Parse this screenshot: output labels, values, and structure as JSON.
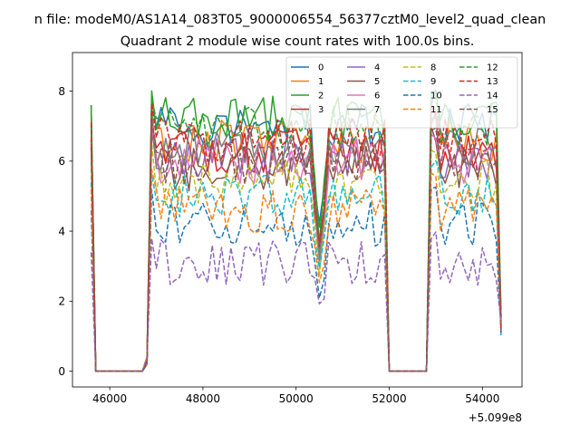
{
  "suptitle": "n file: modeM0/AS1A14_083T05_9000006554_56377cztM0_level2_quad_clean",
  "chart_data": {
    "type": "line",
    "title": "Quadrant 2 module wise count rates with 100.0s bins.",
    "xlabel": "",
    "ylabel": "",
    "x_offset_label": "+5.099e8",
    "xlim": [
      45200,
      54850
    ],
    "ylim": [
      -0.45,
      9.1
    ],
    "x_ticks": [
      46000,
      48000,
      50000,
      52000,
      54000
    ],
    "x_tick_labels": [
      "46000",
      "48000",
      "50000",
      "52000",
      "54000"
    ],
    "y_ticks": [
      0,
      2,
      4,
      6,
      8
    ],
    "y_tick_labels": [
      "0",
      "2",
      "4",
      "6",
      "8"
    ],
    "grid": false,
    "legend": {
      "placement": "top-right",
      "ncol": 4
    },
    "x_segments": [
      {
        "start": 45600,
        "end": 46700,
        "step": 100,
        "profile": "drop"
      },
      {
        "start": 46800,
        "end": 50300,
        "step": 100,
        "profile": "on"
      },
      {
        "start": 50400,
        "end": 50600,
        "step": 100,
        "profile": "dip"
      },
      {
        "start": 50700,
        "end": 51900,
        "step": 100,
        "profile": "on"
      },
      {
        "start": 52000,
        "end": 52800,
        "step": 100,
        "profile": "zero"
      },
      {
        "start": 52900,
        "end": 54400,
        "step": 100,
        "profile": "on"
      }
    ],
    "series": [
      {
        "name": "0",
        "color": "#1f77b4",
        "dash": "solid",
        "level": 7.0,
        "start": 7.6
      },
      {
        "name": "1",
        "color": "#ff7f0e",
        "dash": "solid",
        "level": 6.6,
        "start": 7.3
      },
      {
        "name": "2",
        "color": "#2ca02c",
        "dash": "solid",
        "level": 7.2,
        "start": 7.6
      },
      {
        "name": "3",
        "color": "#d62728",
        "dash": "solid",
        "level": 6.3,
        "start": 6.6
      },
      {
        "name": "4",
        "color": "#9467bd",
        "dash": "solid",
        "level": 6.1,
        "start": 6.6
      },
      {
        "name": "5",
        "color": "#8c564b",
        "dash": "solid",
        "level": 5.8,
        "start": 6.4
      },
      {
        "name": "6",
        "color": "#e377c2",
        "dash": "solid",
        "level": 6.0,
        "start": 6.5
      },
      {
        "name": "7",
        "color": "#7f7f7f",
        "dash": "solid",
        "level": 6.4,
        "start": 7.0
      },
      {
        "name": "8",
        "color": "#bcbd22",
        "dash": "dashed",
        "level": 5.4,
        "start": 5.8
      },
      {
        "name": "9",
        "color": "#17becf",
        "dash": "dashed",
        "level": 5.0,
        "start": 5.4
      },
      {
        "name": "10",
        "color": "#1f77b4",
        "dash": "dashed",
        "level": 4.2,
        "start": 4.6
      },
      {
        "name": "11",
        "color": "#ff7f0e",
        "dash": "dashed",
        "level": 4.6,
        "start": 5.2
      },
      {
        "name": "12",
        "color": "#2ca02c",
        "dash": "dashed",
        "level": 7.0,
        "start": 7.4
      },
      {
        "name": "13",
        "color": "#d62728",
        "dash": "dashed",
        "level": 6.6,
        "start": 7.1
      },
      {
        "name": "14",
        "color": "#9467bd",
        "dash": "dashed",
        "level": 3.1,
        "start": 3.4
      },
      {
        "name": "15",
        "color": "#8c564b",
        "dash": "dashed",
        "level": 6.0,
        "start": 6.4
      }
    ]
  }
}
